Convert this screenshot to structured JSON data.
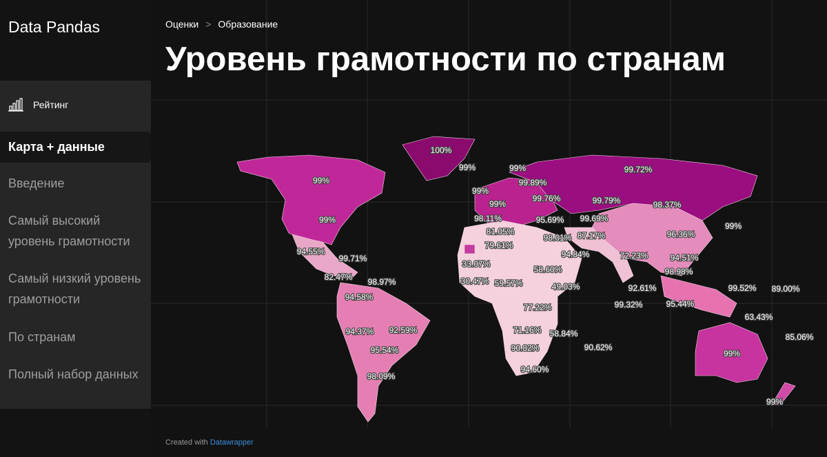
{
  "sidebar": {
    "brand": "Data Pandas",
    "rating": "Рейтинг",
    "nav": [
      "Карта + данные",
      "Введение",
      "Самый высокий уровень грамотности",
      "Самый низкий уровень грамотности",
      "По странам",
      "Полный набор данных"
    ]
  },
  "breadcrumbs": [
    "Оценки",
    "Образование"
  ],
  "title": "Уровень грамотности по странам",
  "map": {
    "labels": [
      "100%",
      "99%",
      "99%",
      "99%",
      "99.72%",
      "99.89%",
      "99%",
      "99.76%",
      "99.79%",
      "98.37%",
      "99%",
      "99%",
      "98.11%",
      "95.69%",
      "99.69%",
      "99%",
      "81.05%",
      "98.01%",
      "87.17%",
      "96.36%",
      "79.61%",
      "94.55%",
      "99.71%",
      "94.84%",
      "72.23%",
      "94.51%",
      "33.07%",
      "58.60%",
      "98.98%",
      "82.47%",
      "98.97%",
      "30.47%",
      "59.57%",
      "49.03%",
      "92.61%",
      "99.52%",
      "89.00%",
      "94.58%",
      "99.32%",
      "95.44%",
      "77.22%",
      "63.43%",
      "94.37%",
      "92.59%",
      "71.16%",
      "58.84%",
      "85.06%",
      "95.54%",
      "90.82%",
      "90.62%",
      "99%",
      "94.60%",
      "98.09%",
      "99%"
    ]
  },
  "footer": {
    "text": "Created with",
    "link": "Datawrapper"
  }
}
